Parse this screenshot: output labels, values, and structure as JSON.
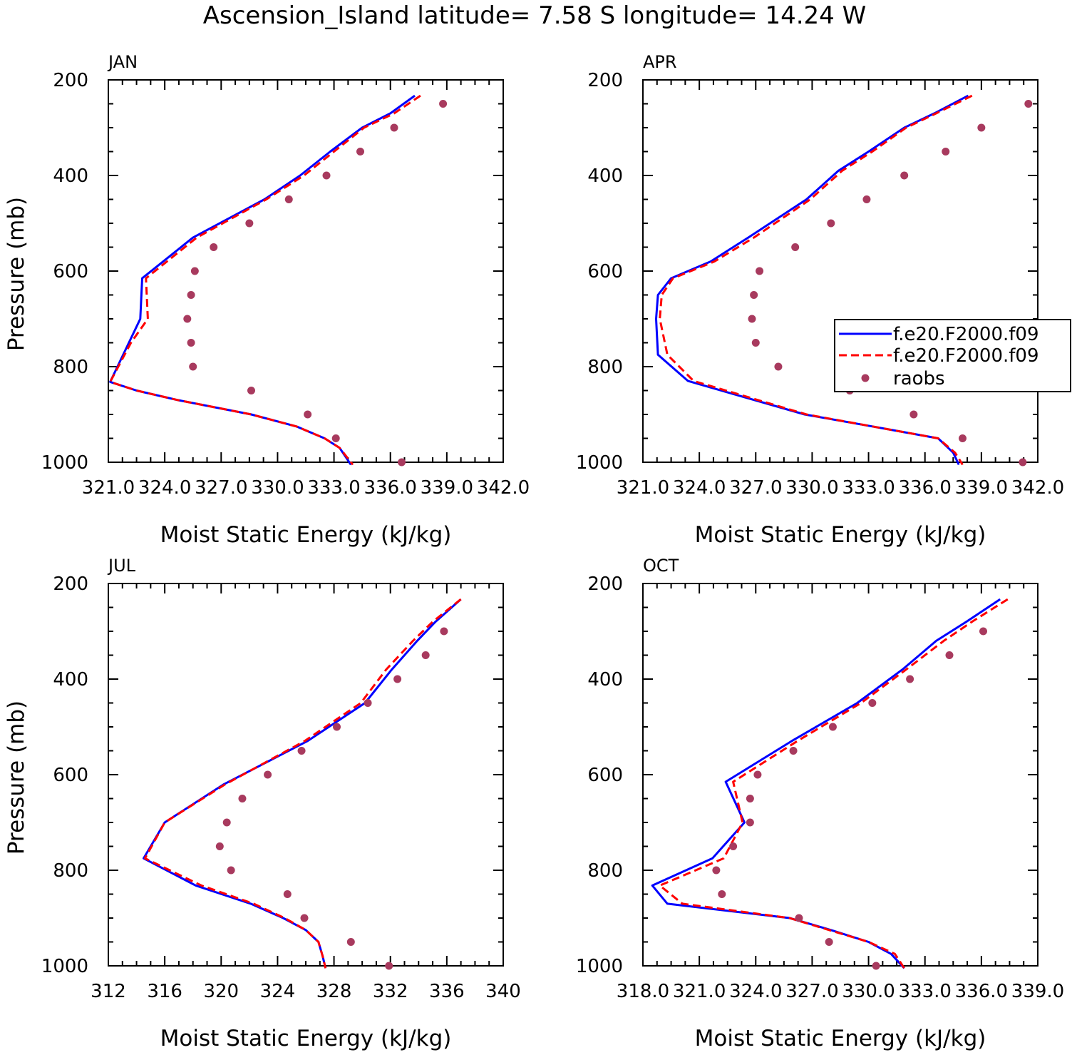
{
  "title": "Ascension_Island  latitude= 7.58 S longitude= 14.24 W",
  "legend": {
    "entries": [
      "f.e20.F2000.f09",
      "f.e20.F2000.f09",
      "raobs"
    ]
  },
  "chart_data": [
    {
      "type": "line",
      "panel_label": "JAN",
      "xlabel": "Moist Static Energy (kJ/kg)",
      "ylabel": "Pressure (mb)",
      "xlim": [
        321,
        342
      ],
      "ylim": [
        1000,
        200
      ],
      "y_scale": "linear-inverted",
      "x_tick_labels": [
        "321.0",
        "324.0",
        "327.0",
        "330.0",
        "333.0",
        "336.0",
        "339.0",
        "342.0"
      ],
      "x_tick_values": [
        321,
        324,
        327,
        330,
        333,
        336,
        339,
        342
      ],
      "y_tick_labels": [
        "200",
        "400",
        "600",
        "800",
        "1000"
      ],
      "y_tick_values": [
        200,
        400,
        600,
        800,
        1000
      ],
      "series": [
        {
          "type": "line",
          "color": "#0000ff",
          "dash": "solid",
          "points": [
            [
              337.3,
              233
            ],
            [
              336.0,
              270
            ],
            [
              334.5,
              300
            ],
            [
              332.8,
              350
            ],
            [
              331.2,
              400
            ],
            [
              329.3,
              450
            ],
            [
              325.5,
              530
            ],
            [
              322.8,
              615
            ],
            [
              322.7,
              700
            ],
            [
              321.1,
              832
            ],
            [
              322.5,
              850
            ],
            [
              324.7,
              870
            ],
            [
              328.6,
              900
            ],
            [
              331.0,
              925
            ],
            [
              332.5,
              950
            ],
            [
              333.3,
              970
            ],
            [
              333.9,
              1005
            ]
          ]
        },
        {
          "type": "line",
          "color": "#ff0000",
          "dash": "dashed",
          "points": [
            [
              337.6,
              233
            ],
            [
              336.2,
              270
            ],
            [
              334.6,
              300
            ],
            [
              333.0,
              350
            ],
            [
              331.4,
              400
            ],
            [
              329.4,
              450
            ],
            [
              325.7,
              530
            ],
            [
              323.0,
              615
            ],
            [
              323.1,
              700
            ],
            [
              322.2,
              750
            ],
            [
              321.1,
              832
            ],
            [
              322.5,
              850
            ],
            [
              324.7,
              870
            ],
            [
              328.6,
              900
            ],
            [
              331.0,
              925
            ],
            [
              332.5,
              950
            ],
            [
              333.3,
              970
            ],
            [
              334.0,
              1005
            ]
          ]
        },
        {
          "type": "scatter",
          "color": "#a83a5e",
          "points": [
            [
              338.8,
              250
            ],
            [
              336.2,
              300
            ],
            [
              334.4,
              350
            ],
            [
              332.6,
              400
            ],
            [
              330.6,
              450
            ],
            [
              328.5,
              500
            ],
            [
              326.6,
              550
            ],
            [
              325.6,
              600
            ],
            [
              325.4,
              650
            ],
            [
              325.2,
              700
            ],
            [
              325.4,
              750
            ],
            [
              325.5,
              800
            ],
            [
              328.6,
              850
            ],
            [
              331.6,
              900
            ],
            [
              333.1,
              950
            ],
            [
              336.6,
              1000
            ]
          ]
        }
      ]
    },
    {
      "type": "line",
      "panel_label": "APR",
      "xlabel": "Moist Static Energy (kJ/kg)",
      "ylabel": "",
      "xlim": [
        321,
        342
      ],
      "ylim": [
        1000,
        200
      ],
      "y_scale": "linear-inverted",
      "x_tick_labels": [
        "321.0",
        "324.0",
        "327.0",
        "330.0",
        "333.0",
        "336.0",
        "339.0",
        "342.0"
      ],
      "x_tick_values": [
        321,
        324,
        327,
        330,
        333,
        336,
        339,
        342
      ],
      "y_tick_labels": [
        "200",
        "400",
        "600",
        "800",
        "1000"
      ],
      "y_tick_values": [
        200,
        400,
        600,
        800,
        1000
      ],
      "series": [
        {
          "type": "line",
          "color": "#0000ff",
          "dash": "solid",
          "points": [
            [
              338.3,
              233
            ],
            [
              336.5,
              270
            ],
            [
              334.9,
              300
            ],
            [
              333.0,
              350
            ],
            [
              331.4,
              390
            ],
            [
              329.7,
              450
            ],
            [
              326.6,
              530
            ],
            [
              324.6,
              580
            ],
            [
              322.5,
              615
            ],
            [
              321.8,
              650
            ],
            [
              321.7,
              700
            ],
            [
              321.8,
              775
            ],
            [
              323.4,
              830
            ],
            [
              329.6,
              900
            ],
            [
              333.2,
              925
            ],
            [
              336.7,
              950
            ],
            [
              337.5,
              980
            ],
            [
              337.8,
              1005
            ]
          ]
        },
        {
          "type": "line",
          "color": "#ff0000",
          "dash": "dashed",
          "points": [
            [
              338.5,
              233
            ],
            [
              336.6,
              270
            ],
            [
              335.0,
              300
            ],
            [
              333.2,
              350
            ],
            [
              331.6,
              390
            ],
            [
              329.9,
              450
            ],
            [
              326.9,
              530
            ],
            [
              324.8,
              580
            ],
            [
              322.6,
              615
            ],
            [
              322.0,
              650
            ],
            [
              321.9,
              700
            ],
            [
              322.3,
              775
            ],
            [
              323.7,
              830
            ],
            [
              329.7,
              900
            ],
            [
              333.2,
              925
            ],
            [
              336.7,
              950
            ],
            [
              337.6,
              980
            ],
            [
              338.0,
              1005
            ]
          ]
        },
        {
          "type": "scatter",
          "color": "#a83a5e",
          "points": [
            [
              341.5,
              250
            ],
            [
              339.0,
              300
            ],
            [
              337.1,
              350
            ],
            [
              334.9,
              400
            ],
            [
              332.9,
              450
            ],
            [
              331.0,
              500
            ],
            [
              329.1,
              550
            ],
            [
              327.2,
              600
            ],
            [
              326.9,
              650
            ],
            [
              326.8,
              700
            ],
            [
              327.0,
              750
            ],
            [
              328.2,
              800
            ],
            [
              332.0,
              850
            ],
            [
              335.4,
              900
            ],
            [
              338.0,
              950
            ],
            [
              341.2,
              1000
            ]
          ]
        }
      ]
    },
    {
      "type": "line",
      "panel_label": "JUL",
      "xlabel": "Moist Static Energy (kJ/kg)",
      "ylabel": "Pressure (mb)",
      "xlim": [
        312,
        340
      ],
      "ylim": [
        1000,
        200
      ],
      "y_scale": "linear-inverted",
      "x_tick_labels": [
        "312",
        "316",
        "320",
        "324",
        "328",
        "332",
        "336",
        "340"
      ],
      "x_tick_values": [
        312,
        316,
        320,
        324,
        328,
        332,
        336,
        340
      ],
      "y_tick_labels": [
        "200",
        "400",
        "600",
        "800",
        "1000"
      ],
      "y_tick_values": [
        200,
        400,
        600,
        800,
        1000
      ],
      "series": [
        {
          "type": "line",
          "color": "#0000ff",
          "dash": "solid",
          "points": [
            [
              337.0,
              233
            ],
            [
              335.2,
              280
            ],
            [
              333.9,
              320
            ],
            [
              332.1,
              380
            ],
            [
              330.2,
              450
            ],
            [
              326.1,
              530
            ],
            [
              320.2,
              620
            ],
            [
              316.0,
              700
            ],
            [
              314.5,
              775
            ],
            [
              318.2,
              832
            ],
            [
              322.1,
              870
            ],
            [
              324.4,
              900
            ],
            [
              326.0,
              925
            ],
            [
              326.9,
              950
            ],
            [
              327.2,
              980
            ],
            [
              327.4,
              1005
            ]
          ]
        },
        {
          "type": "line",
          "color": "#ff0000",
          "dash": "dashed",
          "points": [
            [
              337.0,
              233
            ],
            [
              335.0,
              280
            ],
            [
              333.6,
              320
            ],
            [
              331.7,
              380
            ],
            [
              329.9,
              450
            ],
            [
              325.9,
              530
            ],
            [
              320.3,
              620
            ],
            [
              316.0,
              700
            ],
            [
              314.6,
              775
            ],
            [
              318.6,
              832
            ],
            [
              322.3,
              870
            ],
            [
              324.5,
              900
            ],
            [
              326.0,
              925
            ],
            [
              326.9,
              950
            ],
            [
              327.2,
              980
            ],
            [
              327.4,
              1005
            ]
          ]
        },
        {
          "type": "scatter",
          "color": "#a83a5e",
          "points": [
            [
              335.8,
              300
            ],
            [
              334.5,
              350
            ],
            [
              332.5,
              400
            ],
            [
              330.4,
              450
            ],
            [
              328.2,
              500
            ],
            [
              325.7,
              550
            ],
            [
              323.3,
              600
            ],
            [
              321.5,
              650
            ],
            [
              320.4,
              700
            ],
            [
              319.9,
              750
            ],
            [
              320.7,
              800
            ],
            [
              324.7,
              850
            ],
            [
              325.9,
              900
            ],
            [
              329.2,
              950
            ],
            [
              331.9,
              1000
            ]
          ]
        }
      ]
    },
    {
      "type": "line",
      "panel_label": "OCT",
      "xlabel": "Moist Static Energy (kJ/kg)",
      "ylabel": "",
      "xlim": [
        318,
        339
      ],
      "ylim": [
        1000,
        200
      ],
      "y_scale": "linear-inverted",
      "x_tick_labels": [
        "318.0",
        "321.0",
        "324.0",
        "327.0",
        "330.0",
        "333.0",
        "336.0",
        "339.0"
      ],
      "x_tick_values": [
        318,
        321,
        324,
        327,
        330,
        333,
        336,
        339
      ],
      "y_tick_labels": [
        "200",
        "400",
        "600",
        "800",
        "1000"
      ],
      "y_tick_values": [
        200,
        400,
        600,
        800,
        1000
      ],
      "series": [
        {
          "type": "line",
          "color": "#0000ff",
          "dash": "solid",
          "points": [
            [
              337.0,
              233
            ],
            [
              335.2,
              280
            ],
            [
              333.6,
              320
            ],
            [
              331.8,
              380
            ],
            [
              329.4,
              450
            ],
            [
              325.9,
              530
            ],
            [
              322.4,
              615
            ],
            [
              323.4,
              700
            ],
            [
              321.7,
              775
            ],
            [
              318.5,
              832
            ],
            [
              319.3,
              870
            ],
            [
              325.8,
              900
            ],
            [
              328.0,
              925
            ],
            [
              330.0,
              950
            ],
            [
              331.2,
              975
            ],
            [
              331.9,
              1005
            ]
          ]
        },
        {
          "type": "line",
          "color": "#ff0000",
          "dash": "dashed",
          "points": [
            [
              337.4,
              233
            ],
            [
              335.5,
              280
            ],
            [
              334.0,
              320
            ],
            [
              332.0,
              380
            ],
            [
              329.6,
              450
            ],
            [
              326.2,
              530
            ],
            [
              322.8,
              615
            ],
            [
              323.3,
              700
            ],
            [
              322.3,
              775
            ],
            [
              318.9,
              832
            ],
            [
              320.1,
              870
            ],
            [
              325.8,
              900
            ],
            [
              327.9,
              925
            ],
            [
              330.0,
              950
            ],
            [
              331.4,
              975
            ],
            [
              331.9,
              1005
            ]
          ]
        },
        {
          "type": "scatter",
          "color": "#a83a5e",
          "points": [
            [
              336.1,
              300
            ],
            [
              334.3,
              350
            ],
            [
              332.2,
              400
            ],
            [
              330.2,
              450
            ],
            [
              328.1,
              500
            ],
            [
              326.0,
              550
            ],
            [
              324.1,
              600
            ],
            [
              323.7,
              650
            ],
            [
              323.7,
              700
            ],
            [
              322.8,
              750
            ],
            [
              321.9,
              800
            ],
            [
              322.2,
              850
            ],
            [
              326.3,
              900
            ],
            [
              327.9,
              950
            ],
            [
              330.4,
              1000
            ]
          ]
        }
      ]
    }
  ]
}
